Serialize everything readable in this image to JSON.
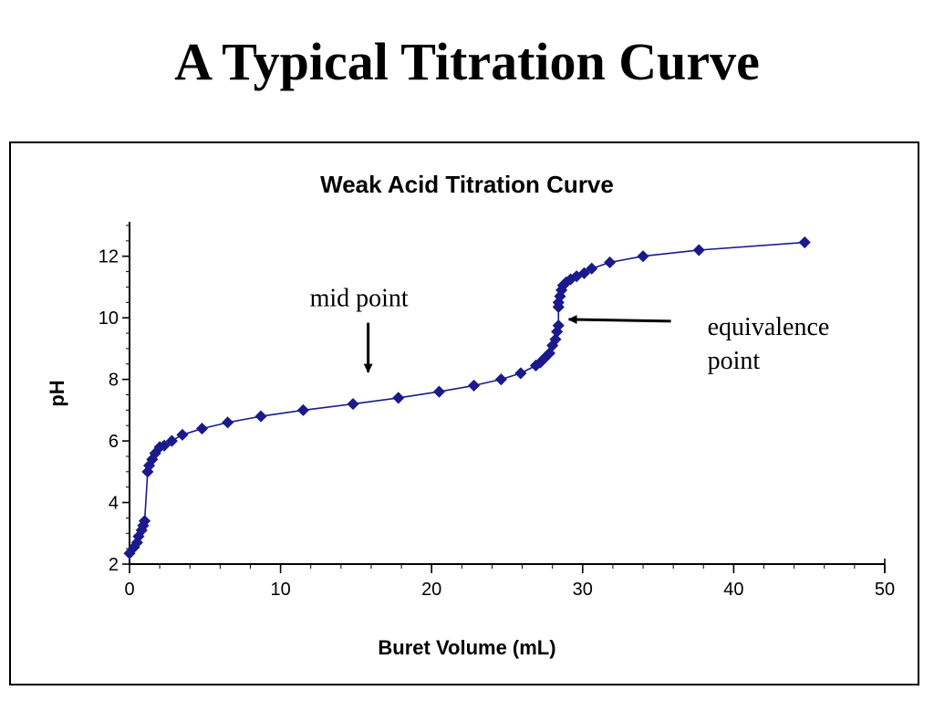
{
  "slide": {
    "title": "A Typical Titration Curve"
  },
  "chart_data": {
    "type": "line",
    "title": "Weak Acid Titration Curve",
    "xlabel": "Buret Volume (mL)",
    "ylabel": "pH",
    "xlim": [
      0,
      50
    ],
    "ylim": [
      2,
      13
    ],
    "xticks": [
      0,
      10,
      20,
      30,
      40,
      50
    ],
    "yticks": [
      2,
      4,
      6,
      8,
      10,
      12
    ],
    "grid": false,
    "legend": "none",
    "marker": "diamond",
    "color": "#1a1a8c",
    "series": [
      {
        "x": [
          0.0,
          0.3,
          0.5,
          0.6,
          0.8,
          0.9,
          1.0,
          1.2,
          1.3,
          1.5,
          1.7,
          2.0,
          2.3,
          2.8,
          3.5,
          4.8,
          6.5,
          8.7,
          11.5,
          14.8,
          17.8,
          20.5,
          22.8,
          24.6,
          25.9,
          26.9,
          27.2,
          27.5,
          27.8,
          28.0,
          28.2,
          28.3,
          28.4,
          28.4,
          28.4,
          28.5,
          28.6,
          28.7,
          28.9,
          29.2,
          29.6,
          30.1,
          30.6,
          31.8,
          34.0,
          37.7,
          44.7
        ],
        "y": [
          2.35,
          2.55,
          2.7,
          2.9,
          3.1,
          3.25,
          3.4,
          5.0,
          5.2,
          5.4,
          5.6,
          5.8,
          5.85,
          6.0,
          6.2,
          6.4,
          6.6,
          6.8,
          7.0,
          7.2,
          7.4,
          7.6,
          7.8,
          8.0,
          8.2,
          8.45,
          8.55,
          8.7,
          8.85,
          9.1,
          9.3,
          9.55,
          9.75,
          10.35,
          10.5,
          10.7,
          10.9,
          11.05,
          11.15,
          11.25,
          11.35,
          11.45,
          11.6,
          11.8,
          12.0,
          12.2,
          12.45
        ]
      }
    ],
    "annotations": [
      {
        "text": "mid point",
        "x": 15.8,
        "y": 8.0
      },
      {
        "text": "equivalence",
        "line2": "point",
        "x": 28.6,
        "y": 9.95
      }
    ]
  }
}
